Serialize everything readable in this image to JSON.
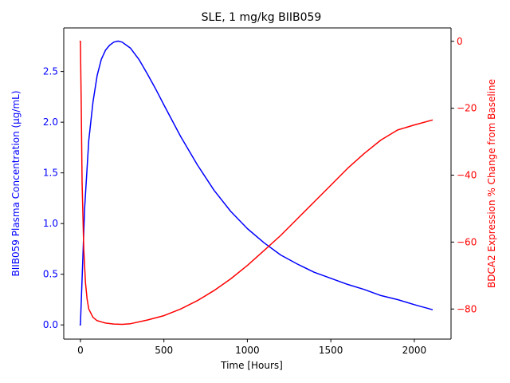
{
  "chart_data": {
    "type": "line",
    "title": "SLE, 1 mg/kg BIIB059",
    "xlabel": "Time [Hours]",
    "ylabel_left": "BIIB059 Plasma Concentration (µg/mL)",
    "ylabel_right": "BDCA2 Expression % Change from Baseline",
    "xlim": [
      -100,
      2220
    ],
    "ylim_left": [
      -0.14,
      2.93
    ],
    "ylim_right": [
      -89,
      4
    ],
    "xticks": [
      "0",
      "500",
      "1000",
      "1500",
      "2000"
    ],
    "yticks_left": [
      "0.0",
      "0.5",
      "1.0",
      "1.5",
      "2.0",
      "2.5"
    ],
    "yticks_right": [
      "0",
      "−20",
      "−40",
      "−60",
      "−80"
    ],
    "colors": {
      "left": "#0000ff",
      "right": "#ff0000"
    },
    "grid": false,
    "series": [
      {
        "axis": "left",
        "color": "#0000ff",
        "x": [
          -5,
          0,
          10,
          25,
          50,
          75,
          100,
          125,
          150,
          175,
          200,
          225,
          250,
          275,
          300,
          350,
          400,
          450,
          500,
          600,
          700,
          800,
          900,
          1000,
          1100,
          1200,
          1300,
          1400,
          1500,
          1600,
          1700,
          1800,
          1900,
          2000,
          2110
        ],
        "y": [
          0.0,
          0.0,
          0.45,
          1.15,
          1.82,
          2.2,
          2.46,
          2.62,
          2.71,
          2.76,
          2.79,
          2.8,
          2.79,
          2.76,
          2.73,
          2.62,
          2.48,
          2.33,
          2.17,
          1.86,
          1.58,
          1.33,
          1.12,
          0.95,
          0.81,
          0.69,
          0.6,
          0.52,
          0.46,
          0.4,
          0.35,
          0.29,
          0.25,
          0.2,
          0.15
        ]
      },
      {
        "axis": "right",
        "color": "#ff0000",
        "x": [
          -5,
          0,
          5,
          10,
          20,
          30,
          40,
          50,
          75,
          100,
          150,
          200,
          250,
          300,
          400,
          500,
          600,
          700,
          800,
          900,
          1000,
          1100,
          1200,
          1300,
          1400,
          1500,
          1600,
          1700,
          1800,
          1900,
          2000,
          2110
        ],
        "y": [
          0,
          0,
          -20,
          -42,
          -62,
          -72,
          -77,
          -80,
          -82.5,
          -83.5,
          -84.2,
          -84.5,
          -84.6,
          -84.4,
          -83.3,
          -82,
          -80,
          -77.5,
          -74.5,
          -71,
          -67,
          -62.5,
          -58,
          -53,
          -48,
          -43,
          -38,
          -33.5,
          -29.5,
          -26.5,
          -25,
          -23.5
        ]
      }
    ]
  }
}
